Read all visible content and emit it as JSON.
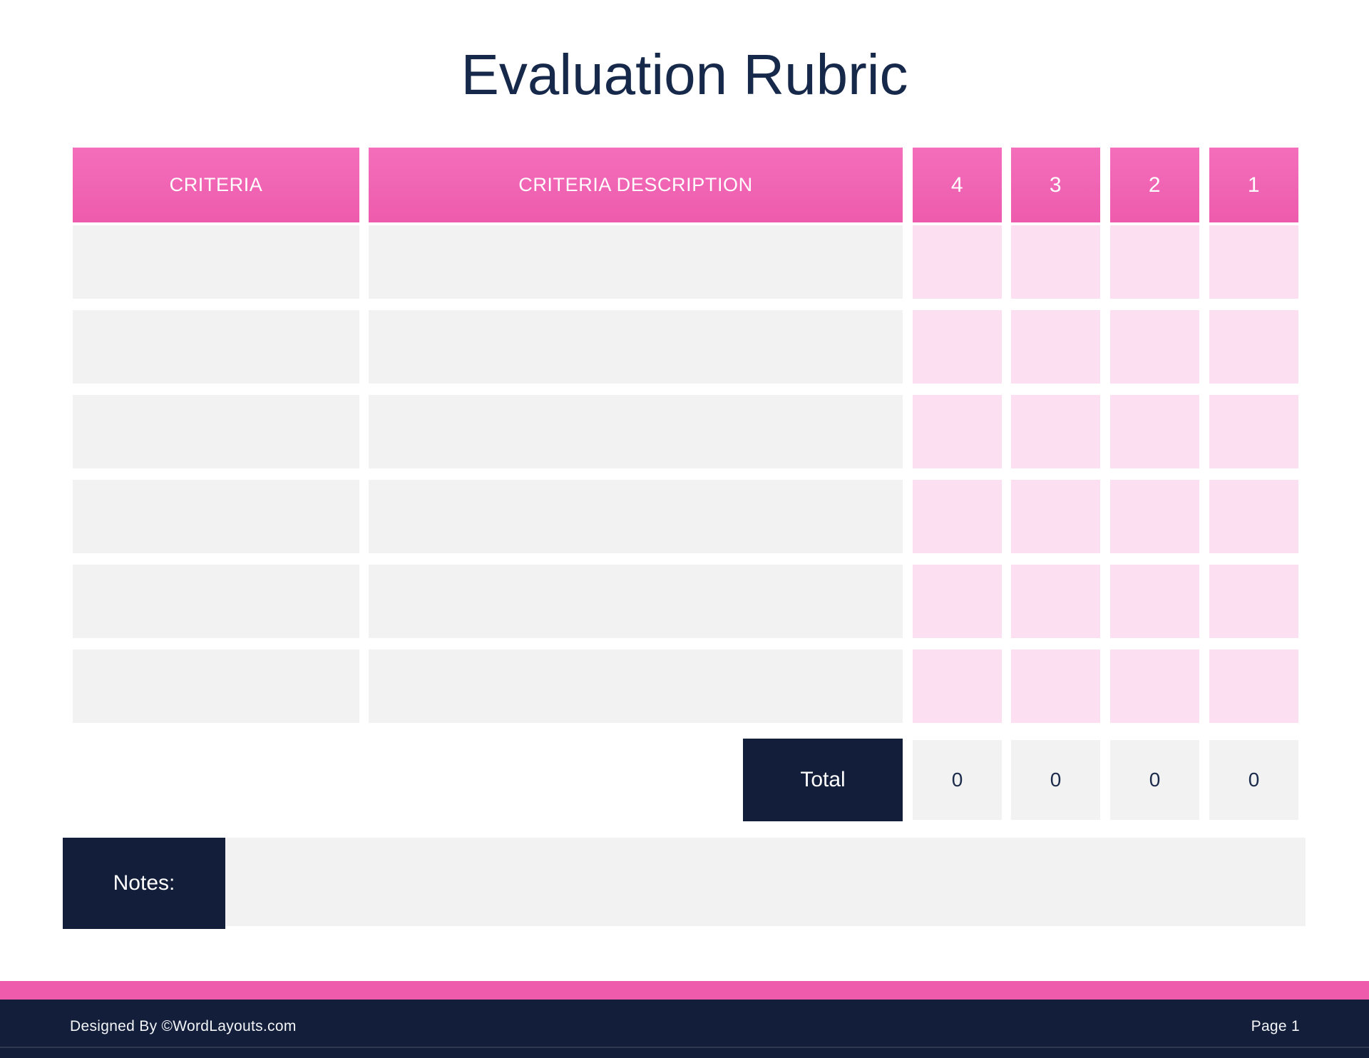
{
  "title": "Evaluation Rubric",
  "table": {
    "headers": [
      "CRITERIA",
      "CRITERIA DESCRIPTION",
      "4",
      "3",
      "2",
      "1"
    ],
    "rows": [
      {
        "criteria": "",
        "description": "",
        "scores": [
          "",
          "",
          "",
          ""
        ]
      },
      {
        "criteria": "",
        "description": "",
        "scores": [
          "",
          "",
          "",
          ""
        ]
      },
      {
        "criteria": "",
        "description": "",
        "scores": [
          "",
          "",
          "",
          ""
        ]
      },
      {
        "criteria": "",
        "description": "",
        "scores": [
          "",
          "",
          "",
          ""
        ]
      },
      {
        "criteria": "",
        "description": "",
        "scores": [
          "",
          "",
          "",
          ""
        ]
      },
      {
        "criteria": "",
        "description": "",
        "scores": [
          "",
          "",
          "",
          ""
        ]
      }
    ],
    "total": {
      "label": "Total",
      "values": [
        "0",
        "0",
        "0",
        "0"
      ]
    }
  },
  "notes": {
    "label": "Notes:",
    "value": ""
  },
  "footer": {
    "credit": "Designed By ©WordLayouts.com",
    "page_label": "Page 1"
  },
  "colors": {
    "accent_pink": "#EE5BAD",
    "accent_pink_light": "#F36EBB",
    "light_pink": "#FCDFF1",
    "cell_gray": "#F2F2F2",
    "navy": "#131F3A",
    "title_navy": "#17294B"
  }
}
